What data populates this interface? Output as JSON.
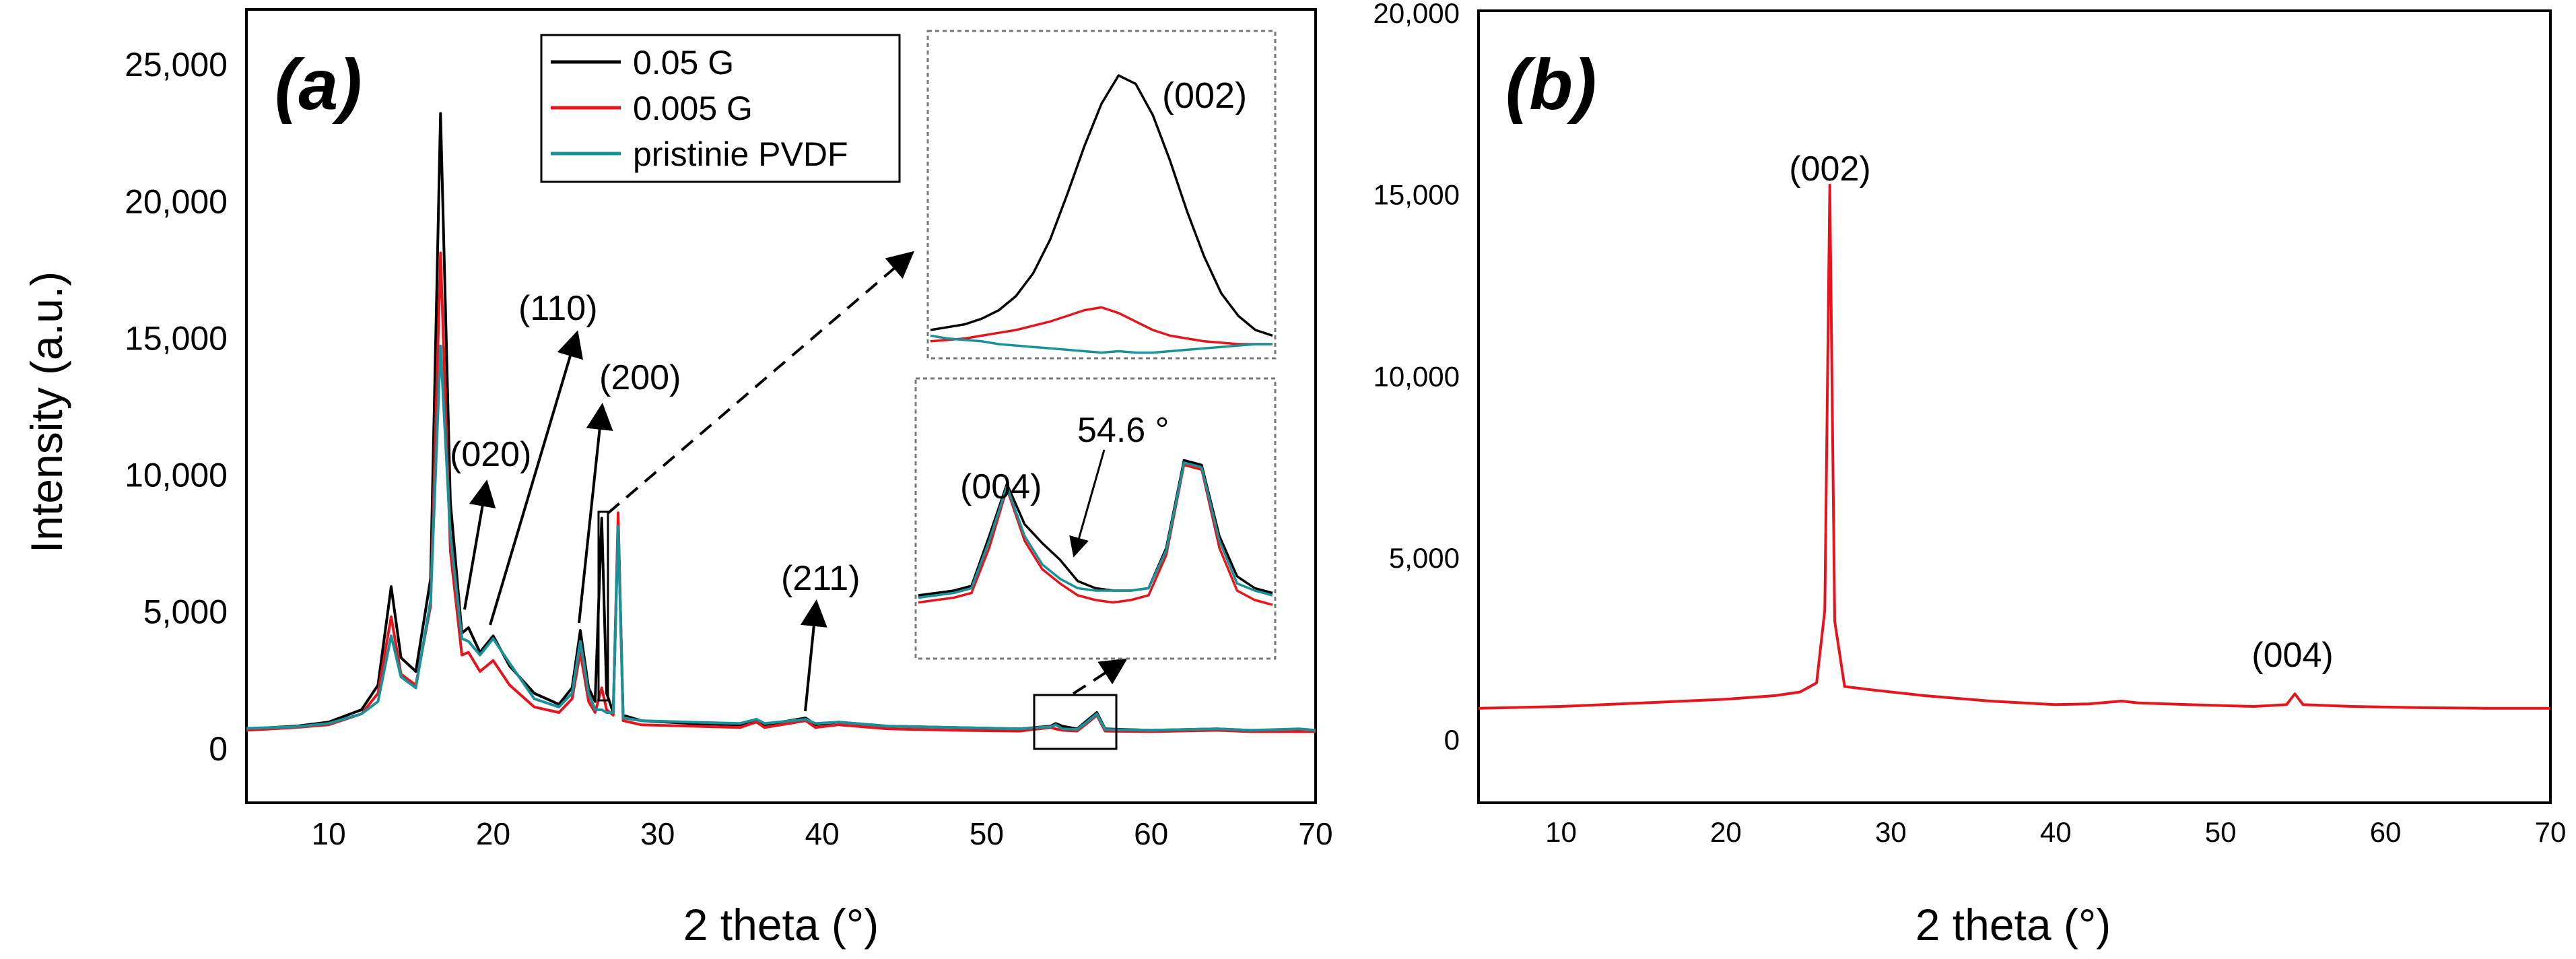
{
  "panels": {
    "a": {
      "label": "(a)",
      "xlabel": "2 theta (°)",
      "ylabel": "Intensity (a.u.)",
      "legend": [
        "0.05 G",
        "0.005 G",
        "pristinie PVDF"
      ],
      "peak_labels": [
        "(020)",
        "(110)",
        "(200)",
        "(211)"
      ],
      "inset_top_label": "(002)",
      "inset_bottom_labels": [
        "(004)",
        "54.6 °"
      ]
    },
    "b": {
      "label": "(b)",
      "xlabel": "2 theta (°)",
      "peak_labels": [
        "(002)",
        "(004)"
      ]
    }
  },
  "chart_data": [
    {
      "type": "line",
      "panel": "a",
      "title": "",
      "xlabel": "2 theta (°)",
      "ylabel": "Intensity (a.u.)",
      "xlim": [
        5,
        70
      ],
      "ylim": [
        -2000,
        27000
      ],
      "xticks": [
        10,
        20,
        30,
        40,
        50,
        60,
        70
      ],
      "yticks": [
        0,
        5000,
        10000,
        15000,
        20000,
        25000
      ],
      "ytick_labels": [
        "0",
        "5,000",
        "10,000",
        "15,000",
        "20,000",
        "25,000"
      ],
      "grid": false,
      "legend_position": "top-center",
      "series": [
        {
          "name": "0.05 G",
          "color": "#000000",
          "points": [
            [
              5,
              700
            ],
            [
              8,
              800
            ],
            [
              10,
              950
            ],
            [
              12,
              1400
            ],
            [
              13,
              2300
            ],
            [
              13.8,
              5900
            ],
            [
              14.4,
              3300
            ],
            [
              15.3,
              2800
            ],
            [
              16.2,
              6200
            ],
            [
              16.8,
              23200
            ],
            [
              17.4,
              9000
            ],
            [
              18.1,
              4200
            ],
            [
              18.5,
              4400
            ],
            [
              19.2,
              3500
            ],
            [
              20,
              4100
            ],
            [
              21,
              3000
            ],
            [
              22.5,
              2000
            ],
            [
              24,
              1600
            ],
            [
              24.8,
              2200
            ],
            [
              25.3,
              4300
            ],
            [
              25.8,
              2200
            ],
            [
              26.2,
              1700
            ],
            [
              26.6,
              8400
            ],
            [
              26.9,
              2000
            ],
            [
              27.3,
              1300
            ],
            [
              27.6,
              8300
            ],
            [
              27.9,
              1200
            ],
            [
              29,
              1000
            ],
            [
              32,
              900
            ],
            [
              35,
              850
            ],
            [
              36,
              1050
            ],
            [
              36.5,
              850
            ],
            [
              39,
              1100
            ],
            [
              39.6,
              850
            ],
            [
              41,
              950
            ],
            [
              44,
              800
            ],
            [
              48,
              750
            ],
            [
              52,
              700
            ],
            [
              53.9,
              800
            ],
            [
              54.2,
              900
            ],
            [
              54.6,
              800
            ],
            [
              55.5,
              700
            ],
            [
              56.2,
              1050
            ],
            [
              56.7,
              1300
            ],
            [
              57.2,
              700
            ],
            [
              60,
              650
            ],
            [
              64,
              700
            ],
            [
              66,
              650
            ],
            [
              69,
              650
            ],
            [
              70,
              650
            ]
          ]
        },
        {
          "name": "0.005 G",
          "color": "#e8131b",
          "points": [
            [
              5,
              650
            ],
            [
              8,
              750
            ],
            [
              10,
              850
            ],
            [
              12,
              1250
            ],
            [
              13,
              2000
            ],
            [
              13.8,
              4800
            ],
            [
              14.4,
              2700
            ],
            [
              15.3,
              2300
            ],
            [
              16.2,
              5200
            ],
            [
              16.8,
              18100
            ],
            [
              17.4,
              7200
            ],
            [
              18.1,
              3400
            ],
            [
              18.5,
              3500
            ],
            [
              19.2,
              2800
            ],
            [
              20,
              3200
            ],
            [
              21,
              2300
            ],
            [
              22.5,
              1500
            ],
            [
              24,
              1300
            ],
            [
              24.8,
              1800
            ],
            [
              25.3,
              3500
            ],
            [
              25.8,
              1700
            ],
            [
              26.2,
              1300
            ],
            [
              26.6,
              2200
            ],
            [
              26.9,
              1400
            ],
            [
              27.3,
              1200
            ],
            [
              27.6,
              8600
            ],
            [
              27.9,
              1000
            ],
            [
              29,
              850
            ],
            [
              32,
              800
            ],
            [
              35,
              750
            ],
            [
              36,
              950
            ],
            [
              36.5,
              750
            ],
            [
              39,
              1000
            ],
            [
              39.6,
              750
            ],
            [
              41,
              850
            ],
            [
              44,
              700
            ],
            [
              48,
              650
            ],
            [
              52,
              620
            ],
            [
              53.9,
              750
            ],
            [
              54.2,
              700
            ],
            [
              54.6,
              650
            ],
            [
              55.5,
              620
            ],
            [
              56.2,
              950
            ],
            [
              56.7,
              1200
            ],
            [
              57.2,
              620
            ],
            [
              60,
              600
            ],
            [
              64,
              650
            ],
            [
              66,
              600
            ],
            [
              69,
              600
            ],
            [
              70,
              600
            ]
          ]
        },
        {
          "name": "pristinie PVDF",
          "color": "#17929a",
          "points": [
            [
              5,
              720
            ],
            [
              8,
              780
            ],
            [
              10,
              900
            ],
            [
              12,
              1250
            ],
            [
              13,
              1700
            ],
            [
              13.8,
              4100
            ],
            [
              14.4,
              2600
            ],
            [
              15.3,
              2200
            ],
            [
              16.2,
              5400
            ],
            [
              16.8,
              14700
            ],
            [
              17.4,
              7800
            ],
            [
              18.1,
              4000
            ],
            [
              18.5,
              3900
            ],
            [
              19.2,
              3400
            ],
            [
              20,
              4000
            ],
            [
              21,
              3100
            ],
            [
              22.5,
              1800
            ],
            [
              24,
              1500
            ],
            [
              24.8,
              2000
            ],
            [
              25.3,
              3900
            ],
            [
              25.8,
              2000
            ],
            [
              26.2,
              1400
            ],
            [
              26.6,
              1400
            ],
            [
              26.9,
              1300
            ],
            [
              27.3,
              1300
            ],
            [
              27.6,
              8100
            ],
            [
              27.9,
              1100
            ],
            [
              29,
              1000
            ],
            [
              32,
              950
            ],
            [
              35,
              900
            ],
            [
              36,
              1050
            ],
            [
              36.5,
              900
            ],
            [
              39,
              1050
            ],
            [
              39.6,
              900
            ],
            [
              41,
              950
            ],
            [
              44,
              800
            ],
            [
              48,
              750
            ],
            [
              52,
              700
            ],
            [
              53.9,
              780
            ],
            [
              54.2,
              850
            ],
            [
              54.6,
              700
            ],
            [
              55.5,
              680
            ],
            [
              56.2,
              1000
            ],
            [
              56.7,
              1250
            ],
            [
              57.2,
              680
            ],
            [
              60,
              650
            ],
            [
              64,
              700
            ],
            [
              66,
              650
            ],
            [
              69,
              700
            ],
            [
              70,
              650
            ]
          ]
        }
      ],
      "annotations": [
        {
          "text": "(020)",
          "x": 18.3,
          "y": 4400
        },
        {
          "text": "(110)",
          "x": 20,
          "y": 4100
        },
        {
          "text": "(200)",
          "x": 25.3,
          "y": 4300
        },
        {
          "text": "(211)",
          "x": 39.2,
          "y": 1100
        }
      ],
      "insets": [
        {
          "label": "(002)",
          "zoom_of": "peak near 26.6",
          "series": [
            {
              "name": "0.05 G",
              "color": "#000000",
              "values": [
                0.1,
                0.11,
                0.12,
                0.14,
                0.17,
                0.22,
                0.3,
                0.42,
                0.58,
                0.75,
                0.9,
                1.0,
                0.97,
                0.86,
                0.7,
                0.52,
                0.36,
                0.23,
                0.15,
                0.1,
                0.08
              ]
            },
            {
              "name": "0.005 G",
              "color": "#e8131b",
              "values": [
                0.06,
                0.065,
                0.07,
                0.08,
                0.09,
                0.1,
                0.115,
                0.13,
                0.15,
                0.17,
                0.18,
                0.16,
                0.13,
                0.1,
                0.08,
                0.07,
                0.06,
                0.055,
                0.05,
                0.05,
                0.05
              ]
            },
            {
              "name": "pristinie PVDF",
              "color": "#17929a",
              "values": [
                0.08,
                0.07,
                0.065,
                0.06,
                0.05,
                0.045,
                0.04,
                0.035,
                0.03,
                0.025,
                0.02,
                0.025,
                0.02,
                0.02,
                0.025,
                0.03,
                0.035,
                0.04,
                0.045,
                0.05,
                0.05
              ]
            }
          ]
        },
        {
          "label": "(004)",
          "annotation": "54.6 °",
          "zoom_of": "53 to 57",
          "series": [
            {
              "name": "0.05 G",
              "color": "#000000",
              "values": [
                0.25,
                0.26,
                0.27,
                0.29,
                0.5,
                0.72,
                0.55,
                0.47,
                0.4,
                0.31,
                0.28,
                0.27,
                0.27,
                0.28,
                0.45,
                0.82,
                0.8,
                0.5,
                0.33,
                0.28,
                0.26
              ]
            },
            {
              "name": "0.005 G",
              "color": "#e8131b",
              "values": [
                0.22,
                0.23,
                0.24,
                0.26,
                0.45,
                0.7,
                0.48,
                0.36,
                0.3,
                0.25,
                0.23,
                0.22,
                0.23,
                0.25,
                0.42,
                0.8,
                0.78,
                0.45,
                0.27,
                0.23,
                0.21
              ]
            },
            {
              "name": "pristinie PVDF",
              "color": "#17929a",
              "values": [
                0.24,
                0.25,
                0.26,
                0.28,
                0.48,
                0.71,
                0.5,
                0.38,
                0.32,
                0.28,
                0.27,
                0.27,
                0.27,
                0.28,
                0.44,
                0.81,
                0.79,
                0.48,
                0.3,
                0.27,
                0.25
              ]
            }
          ]
        }
      ]
    },
    {
      "type": "line",
      "panel": "b",
      "title": "",
      "xlabel": "2 theta (°)",
      "ylabel": "",
      "xlim": [
        5,
        70
      ],
      "ylim": [
        -1800,
        20000
      ],
      "xticks": [
        10,
        20,
        30,
        40,
        50,
        60,
        70
      ],
      "yticks": [
        0,
        5000,
        10000,
        15000,
        20000
      ],
      "ytick_labels": [
        "0",
        "5,000",
        "10,000",
        "15,000",
        "20,000"
      ],
      "grid": false,
      "series": [
        {
          "color": "#e8131b",
          "points": [
            [
              5,
              800
            ],
            [
              10,
              850
            ],
            [
              15,
              950
            ],
            [
              20,
              1050
            ],
            [
              23,
              1150
            ],
            [
              24.5,
              1250
            ],
            [
              25.5,
              1500
            ],
            [
              26.0,
              3500
            ],
            [
              26.3,
              15200
            ],
            [
              26.6,
              3200
            ],
            [
              27.2,
              1400
            ],
            [
              29,
              1300
            ],
            [
              32,
              1150
            ],
            [
              36,
              1000
            ],
            [
              40,
              900
            ],
            [
              42,
              920
            ],
            [
              44,
              1000
            ],
            [
              45,
              950
            ],
            [
              48,
              900
            ],
            [
              52,
              850
            ],
            [
              54.0,
              900
            ],
            [
              54.5,
              1200
            ],
            [
              55.0,
              900
            ],
            [
              58,
              850
            ],
            [
              62,
              820
            ],
            [
              66,
              800
            ],
            [
              70,
              800
            ]
          ]
        }
      ],
      "annotations": [
        {
          "text": "(002)",
          "x": 26.3,
          "y": 15200
        },
        {
          "text": "(004)",
          "x": 54.5,
          "y": 1200
        }
      ]
    }
  ]
}
